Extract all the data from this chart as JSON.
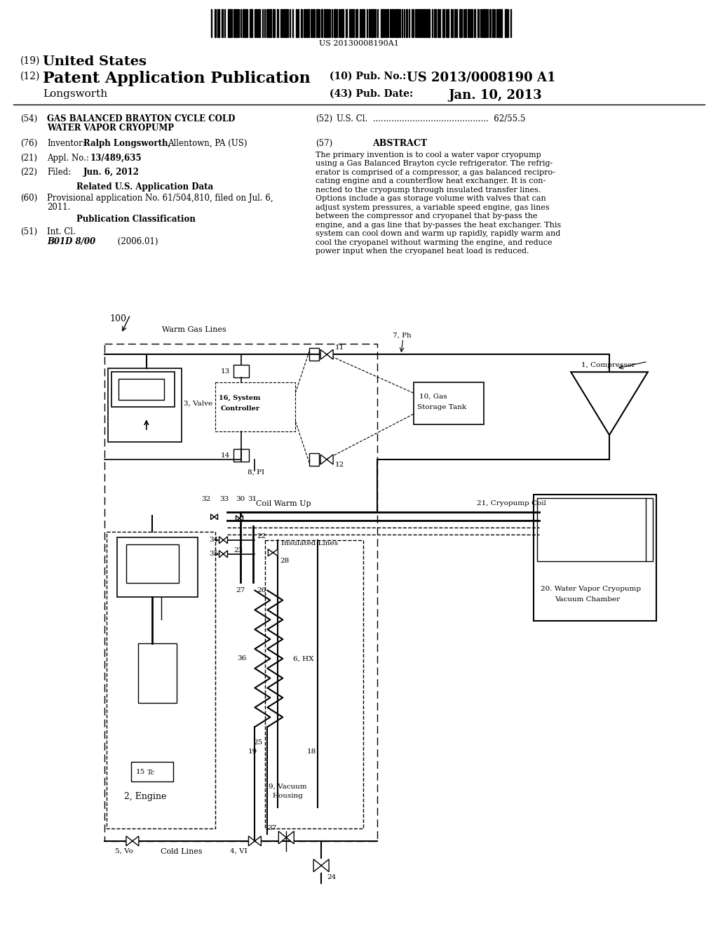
{
  "bg_color": "#ffffff",
  "barcode_text": "US 20130008190A1",
  "title19": "(19) United States",
  "title12": "(12) Patent Application Publication",
  "inventor_line": "        Longsworth",
  "pub_no_label": "(10) Pub. No.:",
  "pub_no": "US 2013/0008190 A1",
  "pub_date_label": "(43) Pub. Date:",
  "pub_date": "Jan. 10, 2013",
  "abstract_text": "The primary invention is to cool a water vapor cryopump\nusing a Gas Balanced Brayton cycle refrigerator. The refrig-\nerator is comprised of a compressor, a gas balanced recipro-\ncating engine and a counterflow heat exchanger. It is con-\nnected to the cryopump through insulated transfer lines.\nOptions include a gas storage volume with valves that can\nadjust system pressures, a variable speed engine, gas lines\nbetween the compressor and cryopanel that by-pass the\nengine, and a gas line that by-passes the heat exchanger. This\nsystem can cool down and warm up rapidly, rapidly warm and\ncool the cryopanel without warming the engine, and reduce\npower input when the cryopanel heat load is reduced."
}
